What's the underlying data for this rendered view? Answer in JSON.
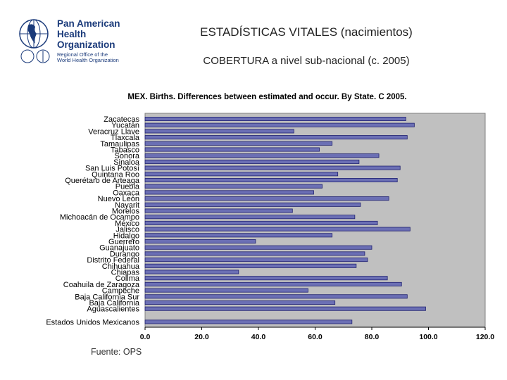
{
  "header": {
    "org_name_lines": [
      "Pan American",
      "Health",
      "Organization"
    ],
    "org_sub_lines": [
      "Regional Office of the",
      "World Health Organization"
    ],
    "title": "ESTADÍSTICAS VITALES (nacimientos)",
    "subtitle": "COBERTURA a nivel sub-nacional (c. 2005)"
  },
  "footer": {
    "source": "Fuente: OPS"
  },
  "chart_data": {
    "type": "bar",
    "orientation": "horizontal",
    "title": "MEX. Births. Differences between estimated and occur. By State. C 2005.",
    "xlim": [
      0,
      120
    ],
    "x_ticks": [
      "0.0",
      "20.0",
      "40.0",
      "60.0",
      "80.0",
      "100.0",
      "120.0"
    ],
    "grid": false,
    "colors": {
      "bar_fill": "#6b6fb4",
      "bar_edge": "#1f2070",
      "plot_bg": "#c0c0c0"
    },
    "categories": [
      "Zacatecas",
      "Yucatán",
      "Veracruz Llave",
      "Tlaxcala",
      "Tamaulipas",
      "Tabasco",
      "Sonora",
      "Sinaloa",
      "San Luis Potosí",
      "Quintana Roo",
      "Querétaro de Arteaga",
      "Puebla",
      "Oaxaca",
      "Nuevo León",
      "Nayarit",
      "Morelos",
      "Michoacán de Ocampo",
      "México",
      "Jalisco",
      "Hidalgo",
      "Guerrero",
      "Guanajuato",
      "Durango",
      "Distrito Federal",
      "Chihuahua",
      "Chiapas",
      "Colima",
      "Coahuila de Zaragoza",
      "Campeche",
      "Baja California Sur",
      "Baja California",
      "Aguascalientes",
      "Estados Unidos Mexicanos"
    ],
    "values": [
      92,
      95,
      52.5,
      92.5,
      66,
      61.5,
      82.5,
      75.5,
      90,
      68,
      89,
      62.5,
      59.5,
      86,
      76,
      52,
      74,
      82,
      93.5,
      66,
      39,
      80,
      77.5,
      78.5,
      74.5,
      33,
      85.5,
      90.5,
      57.5,
      92.5,
      67,
      99,
      73
    ]
  }
}
